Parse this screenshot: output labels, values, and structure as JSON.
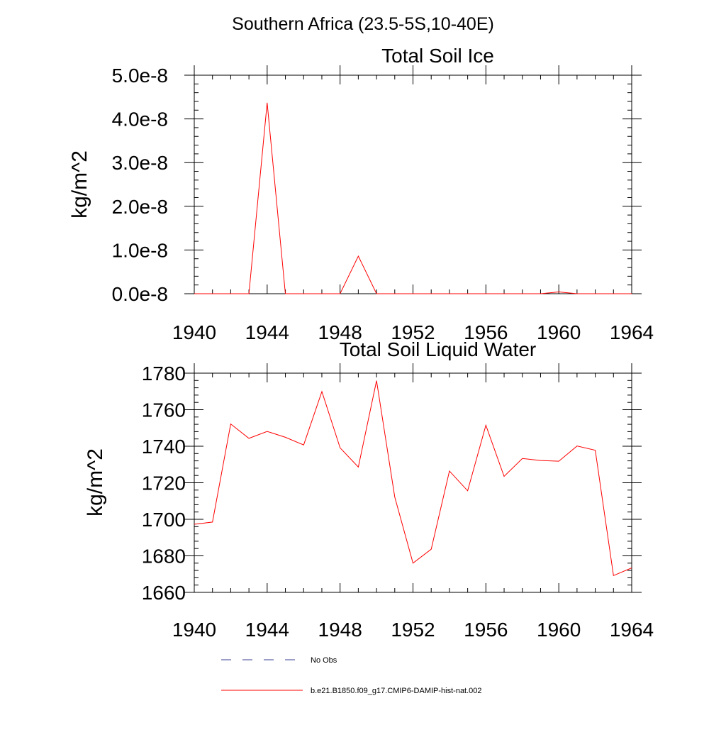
{
  "figure": {
    "suptitle": "Southern Africa (23.5-5S,10-40E)"
  },
  "chart_data": [
    {
      "type": "line",
      "title": "Total Soil Ice",
      "xlabel": "",
      "ylabel": "kg/m^2",
      "xlim": [
        1940,
        1964
      ],
      "ylim": [
        0,
        5e-08
      ],
      "xticks": [
        1940,
        1944,
        1948,
        1952,
        1956,
        1960,
        1964
      ],
      "xtick_labels": [
        "1940",
        "1944",
        "1948",
        "1952",
        "1956",
        "1960",
        "1964"
      ],
      "yticks": [
        0,
        1e-08,
        2e-08,
        3e-08,
        4e-08,
        5e-08
      ],
      "ytick_labels": [
        "0.0e-8",
        "1.0e-8",
        "2.0e-8",
        "3.0e-8",
        "4.0e-8",
        "5.0e-8"
      ],
      "grid": false,
      "series": [
        {
          "name": "b.e21.B1850.f09_g17.CMIP6-DAMIP-hist-nat.002",
          "color": "#ff0000",
          "x": [
            1940,
            1941,
            1942,
            1943,
            1944,
            1945,
            1946,
            1947,
            1948,
            1949,
            1950,
            1951,
            1952,
            1953,
            1954,
            1955,
            1956,
            1957,
            1958,
            1959,
            1960,
            1961,
            1962,
            1963,
            1964
          ],
          "y": [
            0,
            0,
            0,
            0,
            4.37e-08,
            0,
            0,
            0,
            0,
            8.6e-09,
            0,
            0,
            0,
            0,
            0,
            0,
            0,
            0,
            0,
            0,
            4e-10,
            0,
            0,
            0,
            0
          ]
        }
      ]
    },
    {
      "type": "line",
      "title": "Total Soil Liquid Water",
      "xlabel": "",
      "ylabel": "kg/m^2",
      "xlim": [
        1940,
        1964
      ],
      "ylim": [
        1660,
        1780
      ],
      "xticks": [
        1940,
        1944,
        1948,
        1952,
        1956,
        1960,
        1964
      ],
      "xtick_labels": [
        "1940",
        "1944",
        "1948",
        "1952",
        "1956",
        "1960",
        "1964"
      ],
      "yticks": [
        1660,
        1680,
        1700,
        1720,
        1740,
        1760,
        1780
      ],
      "ytick_labels": [
        "1660",
        "1680",
        "1700",
        "1720",
        "1740",
        "1760",
        "1780"
      ],
      "grid": false,
      "series": [
        {
          "name": "b.e21.B1850.f09_g17.CMIP6-DAMIP-hist-nat.002",
          "color": "#ff0000",
          "x": [
            1940,
            1941,
            1942,
            1943,
            1944,
            1945,
            1946,
            1947,
            1948,
            1949,
            1950,
            1951,
            1952,
            1953,
            1954,
            1955,
            1956,
            1957,
            1958,
            1959,
            1960,
            1961,
            1962,
            1963,
            1964
          ],
          "y": [
            1697.3,
            1698.5,
            1752.2,
            1744.3,
            1748.1,
            1744.9,
            1740.7,
            1769.9,
            1739.1,
            1728.6,
            1775.9,
            1712.2,
            1676.0,
            1683.6,
            1726.4,
            1715.6,
            1751.5,
            1723.5,
            1733.3,
            1732.2,
            1731.8,
            1740.1,
            1737.8,
            1669.2,
            1673.4
          ]
        }
      ]
    }
  ],
  "legend": {
    "placement": "bottom",
    "entries": [
      {
        "label": "No Obs",
        "color": "#3a3f8f",
        "style": "dashed"
      },
      {
        "label": "b.e21.B1850.f09_g17.CMIP6-DAMIP-hist-nat.002",
        "color": "#ff0000",
        "style": "solid"
      }
    ]
  }
}
